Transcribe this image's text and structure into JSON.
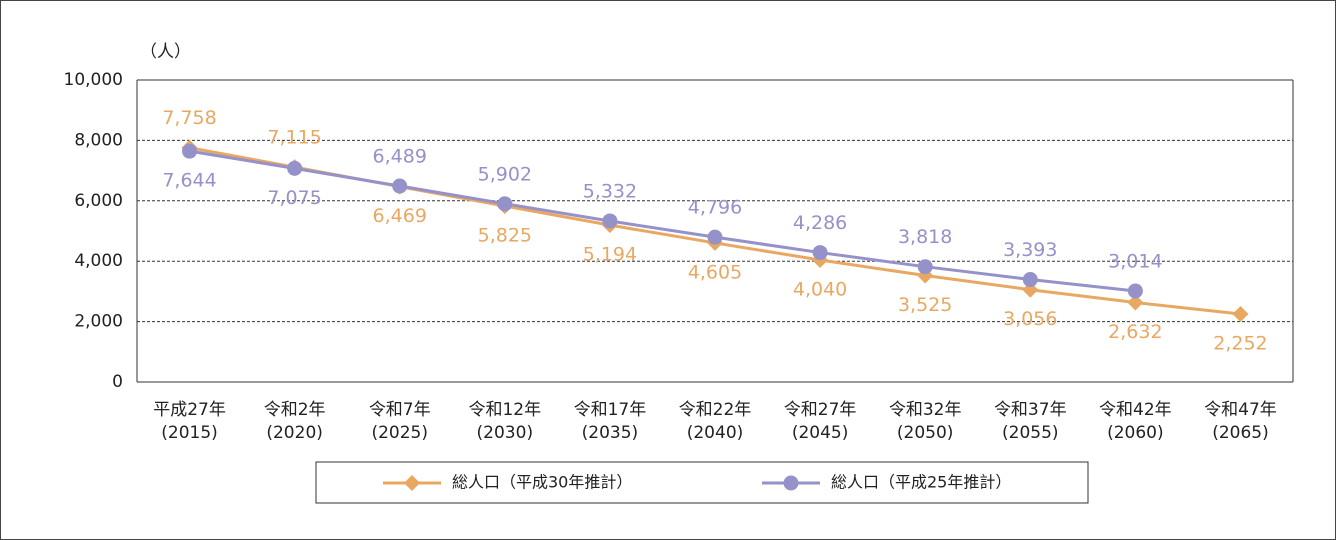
{
  "chart_data": {
    "type": "line",
    "y_label": "（人）",
    "categories": [
      [
        "平成27年",
        "(2015)"
      ],
      [
        "令和2年",
        "(2020)"
      ],
      [
        "令和7年",
        "(2025)"
      ],
      [
        "令和12年",
        "(2030)"
      ],
      [
        "令和17年",
        "(2035)"
      ],
      [
        "令和22年",
        "(2040)"
      ],
      [
        "令和27年",
        "(2045)"
      ],
      [
        "令和32年",
        "(2050)"
      ],
      [
        "令和37年",
        "(2055)"
      ],
      [
        "令和42年",
        "(2060)"
      ],
      [
        "令和47年",
        "(2065)"
      ]
    ],
    "series": [
      {
        "name": "総人口（平成30年推計）",
        "color": "#e9a862",
        "marker": "diamond",
        "values": [
          7758,
          7115,
          6469,
          5825,
          5194,
          4605,
          4040,
          3525,
          3056,
          2632,
          2252
        ],
        "value_labels": [
          "7,758",
          "7,115",
          "6,469",
          "5,825",
          "5,194",
          "4,605",
          "4,040",
          "3,525",
          "3,056",
          "2,632",
          "2,252"
        ]
      },
      {
        "name": "総人口（平成25年推計）",
        "color": "#9591c9",
        "marker": "circle",
        "values": [
          7644,
          7075,
          6489,
          5902,
          5332,
          4796,
          4286,
          3818,
          3393,
          3014,
          null
        ],
        "value_labels": [
          "7,644",
          "7,075",
          "6,489",
          "5,902",
          "5,332",
          "4,796",
          "4,286",
          "3,818",
          "3,393",
          "3,014",
          null
        ]
      }
    ],
    "ylim": [
      0,
      10000
    ],
    "yticks": [
      0,
      {
        "value": 2000,
        "label": "2,000"
      },
      {
        "value": 4000,
        "label": "4,000"
      },
      {
        "value": 6000,
        "label": "6,000"
      },
      {
        "value": 8000,
        "label": "8,000"
      },
      {
        "value": 10000,
        "label": "10,000"
      }
    ],
    "grid": true,
    "legend": "bottom"
  }
}
